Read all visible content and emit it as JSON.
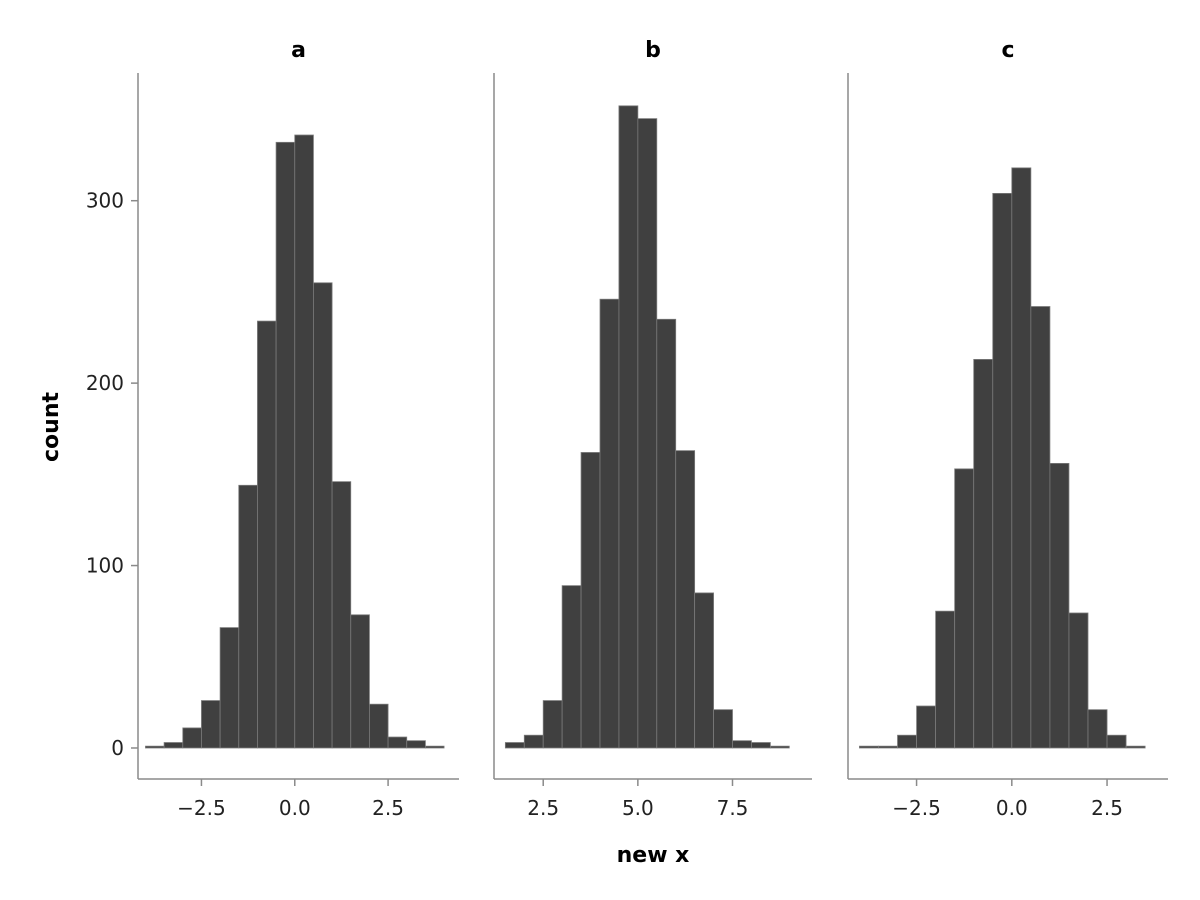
{
  "chart_data": {
    "type": "bar",
    "kind": "histogram",
    "xlabel": "new x",
    "ylabel": "count",
    "bar_color": "#404040",
    "grid": false,
    "y_ticks": [
      0,
      100,
      200,
      300
    ],
    "ylim": [
      -17,
      370
    ],
    "panels": [
      {
        "title": "a",
        "xlim": [
          -4.2,
          4.4
        ],
        "x_ticks": [
          -2.5,
          0.0,
          2.5
        ],
        "x_tick_labels": [
          "−2.5",
          "0.0",
          "2.5"
        ],
        "bin_edges": [
          -4.0,
          -3.5,
          -3.0,
          -2.5,
          -2.0,
          -1.5,
          -1.0,
          -0.5,
          0.0,
          0.5,
          1.0,
          1.5,
          2.0,
          2.5,
          3.0,
          3.5,
          4.0
        ],
        "counts": [
          1,
          3,
          11,
          26,
          66,
          144,
          234,
          332,
          336,
          255,
          146,
          73,
          24,
          6,
          4,
          1
        ]
      },
      {
        "title": "b",
        "xlim": [
          1.2,
          9.6
        ],
        "x_ticks": [
          2.5,
          5.0,
          7.5
        ],
        "x_tick_labels": [
          "2.5",
          "5.0",
          "7.5"
        ],
        "bin_edges": [
          1.5,
          2.0,
          2.5,
          3.0,
          3.5,
          4.0,
          4.5,
          5.0,
          5.5,
          6.0,
          6.5,
          7.0,
          7.5,
          8.0,
          8.5,
          9.0
        ],
        "counts": [
          3,
          7,
          26,
          89,
          162,
          246,
          352,
          345,
          235,
          163,
          85,
          21,
          4,
          3,
          1
        ]
      },
      {
        "title": "c",
        "xlim": [
          -4.3,
          4.1
        ],
        "x_ticks": [
          -2.5,
          0.0,
          2.5
        ],
        "x_tick_labels": [
          "−2.5",
          "0.0",
          "2.5"
        ],
        "bin_edges": [
          -4.0,
          -3.5,
          -3.0,
          -2.5,
          -2.0,
          -1.5,
          -1.0,
          -0.5,
          0.0,
          0.5,
          1.0,
          1.5,
          2.0,
          2.5,
          3.0,
          3.5
        ],
        "counts": [
          1,
          1,
          7,
          23,
          75,
          153,
          213,
          304,
          318,
          242,
          156,
          74,
          21,
          7,
          1
        ]
      }
    ]
  }
}
